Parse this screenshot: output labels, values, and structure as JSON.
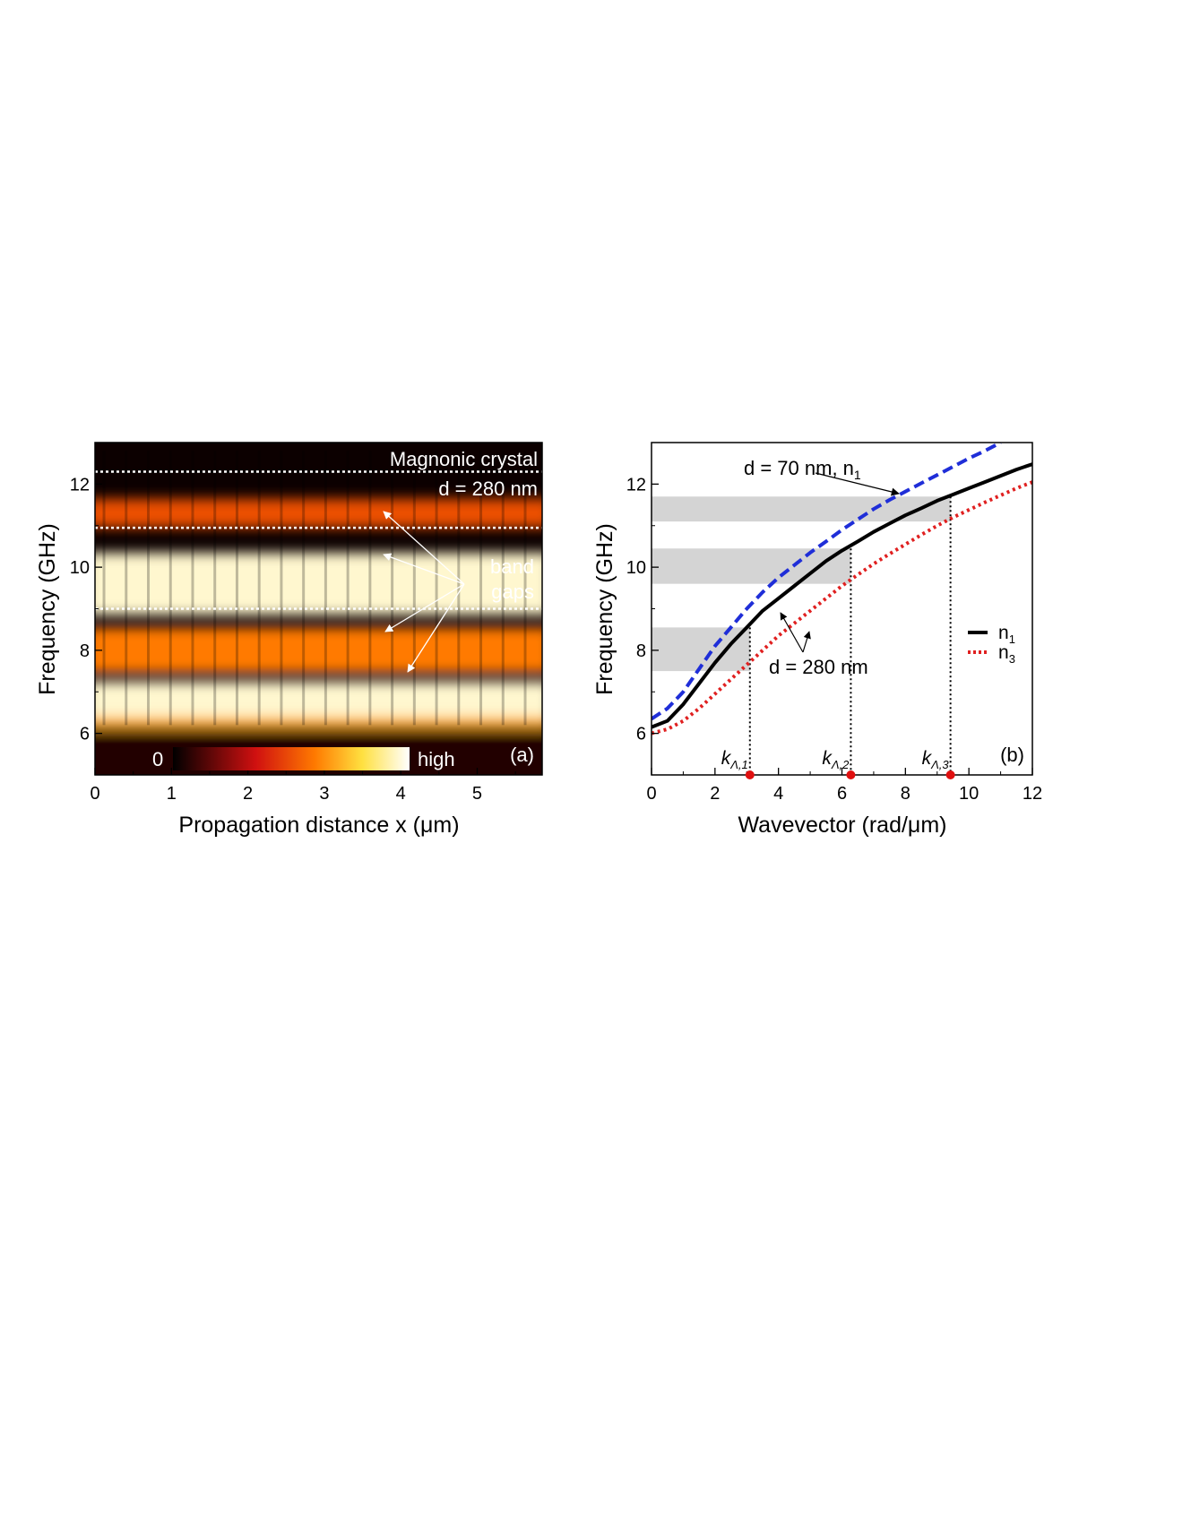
{
  "chart_data": [
    {
      "type": "heatmap",
      "panel_label": "(a)",
      "xlabel": "Propagation distance x (μm)",
      "ylabel": "Frequency (GHz)",
      "xlim": [
        0,
        5.85
      ],
      "ylim": [
        5,
        13
      ],
      "xticks": [
        "0",
        "1",
        "2",
        "3",
        "4",
        "5"
      ],
      "yticks": [
        "6",
        "8",
        "10",
        "12"
      ],
      "colorbar": {
        "low_label": "0",
        "high_label": "high"
      },
      "annotations": {
        "crystal_title": "Magnonic crystal",
        "crystal_period": "d = 280 nm",
        "gap_label_line1": "band",
        "gap_label_line2": "gaps"
      },
      "band_gap_boundaries_ghz": [
        12.3,
        10.95,
        9.0
      ],
      "intensity_bands": [
        {
          "freq_center": 9.6,
          "level": 0.95
        },
        {
          "freq_center": 8.0,
          "level": 0.6
        },
        {
          "freq_center": 6.7,
          "level": 0.95
        },
        {
          "freq_center": 11.3,
          "level": 0.5
        }
      ]
    },
    {
      "type": "line",
      "panel_label": "(b)",
      "xlabel": "Wavevector (rad/μm)",
      "ylabel": "Frequency (GHz)",
      "xlim": [
        0,
        12
      ],
      "ylim": [
        5,
        13
      ],
      "xticks": [
        "0",
        "2",
        "4",
        "6",
        "8",
        "10",
        "12"
      ],
      "yticks": [
        "6",
        "8",
        "10",
        "12"
      ],
      "series": [
        {
          "name": "n1",
          "name_main": "n",
          "name_sub": "1",
          "style": "solid",
          "color": "#000000",
          "x": [
            0,
            0.5,
            1,
            1.5,
            2,
            2.5,
            3,
            3.5,
            4,
            4.5,
            5,
            5.5,
            6,
            6.5,
            7,
            7.5,
            8,
            8.5,
            9,
            9.5,
            10,
            10.5,
            11,
            11.5,
            12
          ],
          "y": [
            6.15,
            6.3,
            6.7,
            7.2,
            7.7,
            8.15,
            8.55,
            8.95,
            9.25,
            9.55,
            9.85,
            10.15,
            10.4,
            10.62,
            10.85,
            11.05,
            11.25,
            11.42,
            11.6,
            11.75,
            11.9,
            12.05,
            12.2,
            12.35,
            12.48
          ]
        },
        {
          "name": "n3",
          "name_main": "n",
          "name_sub": "3",
          "style": "dotted",
          "color": "#e02020",
          "x": [
            0,
            0.5,
            1,
            1.5,
            2,
            2.5,
            3,
            3.5,
            4,
            4.5,
            5,
            5.5,
            6,
            6.5,
            7,
            7.5,
            8,
            8.5,
            9,
            9.5,
            10,
            10.5,
            11,
            11.5,
            12
          ],
          "y": [
            6.0,
            6.1,
            6.3,
            6.6,
            6.95,
            7.3,
            7.65,
            8.0,
            8.35,
            8.65,
            8.95,
            9.25,
            9.55,
            9.82,
            10.08,
            10.32,
            10.55,
            10.78,
            11.0,
            11.2,
            11.38,
            11.56,
            11.73,
            11.9,
            12.05
          ]
        },
        {
          "name": "d = 70 nm, n1",
          "style": "dashed",
          "color": "#1f2ed8",
          "x": [
            0,
            0.5,
            1,
            1.5,
            2,
            2.5,
            3,
            3.5,
            4,
            4.5,
            5,
            5.5,
            6,
            6.5,
            7,
            7.5,
            8,
            8.5,
            9,
            9.5,
            10,
            10.5,
            11
          ],
          "y": [
            6.35,
            6.6,
            7.0,
            7.55,
            8.1,
            8.55,
            9.0,
            9.4,
            9.75,
            10.05,
            10.35,
            10.62,
            10.9,
            11.15,
            11.4,
            11.62,
            11.82,
            12.02,
            12.22,
            12.42,
            12.62,
            12.8,
            13.0
          ]
        }
      ],
      "band_gaps_ghz": [
        [
          7.5,
          8.55
        ],
        [
          9.6,
          10.45
        ],
        [
          11.1,
          11.7
        ]
      ],
      "k_markers": [
        {
          "x": 3.1,
          "label_main": "k",
          "label_sub": "Λ,1"
        },
        {
          "x": 6.28,
          "label_main": "k",
          "label_sub": "Λ,2"
        },
        {
          "x": 9.42,
          "label_main": "k",
          "label_sub": "Λ,3"
        }
      ],
      "annotations": {
        "d70_main": "d = 70 nm, n",
        "d70_sub": "1",
        "d280": "d = 280 nm"
      },
      "legend_position": "right"
    }
  ]
}
